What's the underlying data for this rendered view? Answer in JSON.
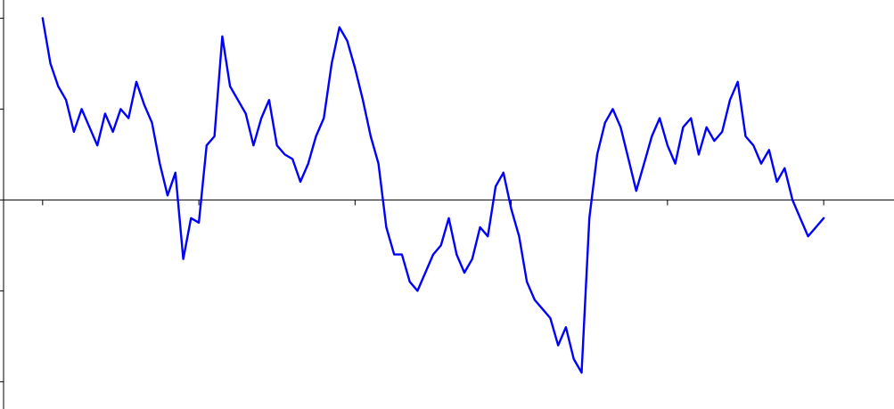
{
  "chart_data": {
    "type": "line",
    "title": "",
    "xlabel": "",
    "ylabel": "",
    "grid": false,
    "xlim": [
      -0.25,
      5.45
    ],
    "ylim": [
      -2.3,
      2.2
    ],
    "x_ticks": [
      0,
      1,
      2,
      3,
      4,
      5
    ],
    "y_ticks": [
      -2,
      -1,
      0,
      1,
      2
    ],
    "series": [
      {
        "color": "#0000ff",
        "x": [
          0,
          0.05,
          0.1,
          0.15,
          0.2,
          0.25,
          0.3,
          0.35,
          0.4,
          0.45,
          0.5,
          0.55,
          0.6,
          0.65,
          0.7,
          0.75,
          0.8,
          0.85,
          0.9,
          0.95,
          1,
          1.05,
          1.1,
          1.15,
          1.2,
          1.25,
          1.3,
          1.35,
          1.4,
          1.45,
          1.5,
          1.55,
          1.6,
          1.65,
          1.7,
          1.75,
          1.8,
          1.85,
          1.9,
          1.95,
          2,
          2.05,
          2.1,
          2.15,
          2.2,
          2.25,
          2.3,
          2.35,
          2.4,
          2.45,
          2.5,
          2.55,
          2.6,
          2.65,
          2.7,
          2.75,
          2.8,
          2.85,
          2.9,
          2.95,
          3,
          3.05,
          3.1,
          3.15,
          3.2,
          3.25,
          3.3,
          3.35,
          3.4,
          3.45,
          3.5,
          3.55,
          3.6,
          3.65,
          3.7,
          3.75,
          3.8,
          3.85,
          3.9,
          3.95,
          4,
          4.05,
          4.1,
          4.15,
          4.2,
          4.25,
          4.3,
          4.35,
          4.4,
          4.45,
          4.5,
          4.55,
          4.6,
          4.65,
          4.7,
          4.75,
          4.8,
          4.85,
          4.9,
          4.95,
          5
        ],
        "y": [
          2.0,
          1.5,
          1.25,
          1.1,
          0.75,
          1.0,
          0.8,
          0.6,
          0.95,
          0.75,
          1.0,
          0.9,
          1.3,
          1.05,
          0.85,
          0.4,
          0.05,
          0.3,
          -0.65,
          -0.2,
          -0.25,
          0.6,
          0.7,
          1.8,
          1.25,
          1.1,
          0.95,
          0.6,
          0.9,
          1.1,
          0.6,
          0.5,
          0.45,
          0.2,
          0.4,
          0.7,
          0.9,
          1.5,
          1.9,
          1.75,
          1.45,
          1.1,
          0.7,
          0.4,
          -0.3,
          -0.6,
          -0.6,
          -0.9,
          -1.0,
          -0.8,
          -0.6,
          -0.5,
          -0.2,
          -0.6,
          -0.8,
          -0.65,
          -0.3,
          -0.4,
          0.15,
          0.3,
          -0.1,
          -0.4,
          -0.9,
          -1.1,
          -1.2,
          -1.3,
          -1.6,
          -1.4,
          -1.75,
          -1.9,
          -0.2,
          0.5,
          0.85,
          1.0,
          0.8,
          0.45,
          0.1,
          0.4,
          0.7,
          0.9,
          0.6,
          0.4,
          0.8,
          0.9,
          0.5,
          0.8,
          0.65,
          0.75,
          1.1,
          1.3,
          0.7,
          0.6,
          0.4,
          0.55,
          0.2,
          0.35,
          0.0,
          -0.2,
          -0.4,
          -0.3,
          -0.2
        ]
      }
    ]
  }
}
